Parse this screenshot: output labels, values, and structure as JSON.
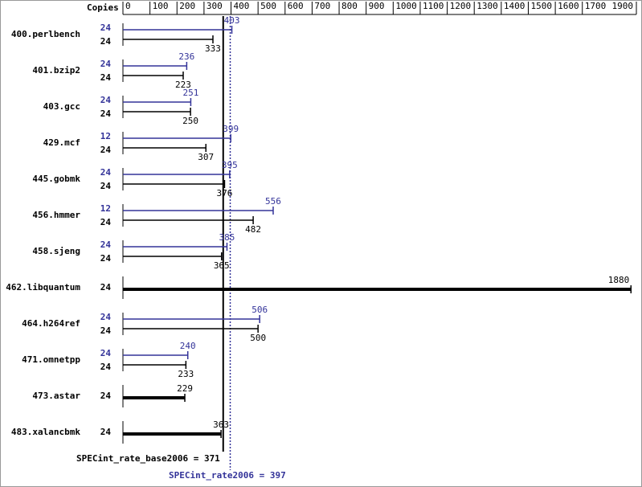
{
  "chart_data": {
    "type": "bar",
    "x_header": "Copies",
    "categories": [
      "400.perlbench",
      "401.bzip2",
      "403.gcc",
      "429.mcf",
      "445.gobmk",
      "456.hmmer",
      "458.sjeng",
      "462.libquantum",
      "464.h264ref",
      "471.omnetpp",
      "473.astar",
      "483.xalancbmk"
    ],
    "series": [
      {
        "color": "#333399",
        "copies": [
          24,
          24,
          24,
          12,
          24,
          12,
          24,
          null,
          24,
          24,
          null,
          null
        ],
        "values": [
          403,
          236,
          251,
          399,
          395,
          556,
          385,
          null,
          506,
          240,
          null,
          null
        ]
      },
      {
        "color": "#000000",
        "copies": [
          24,
          24,
          24,
          24,
          24,
          24,
          24,
          24,
          24,
          24,
          24,
          24
        ],
        "values": [
          333,
          223,
          250,
          307,
          376,
          482,
          365,
          1880,
          500,
          233,
          229,
          363
        ]
      }
    ],
    "reference_lines": [
      {
        "label": "SPECint_rate_base2006 = 371",
        "value": 371,
        "color": "#000000",
        "dashed": false
      },
      {
        "label": "SPECint_rate2006 = 397",
        "value": 397,
        "color": "#333399",
        "dashed": true
      }
    ],
    "xlim": [
      0,
      1900
    ],
    "xticks": [
      0,
      100,
      200,
      300,
      400,
      500,
      600,
      700,
      800,
      900,
      1000,
      1100,
      1200,
      1300,
      1400,
      1500,
      1600,
      1700,
      1900
    ]
  }
}
